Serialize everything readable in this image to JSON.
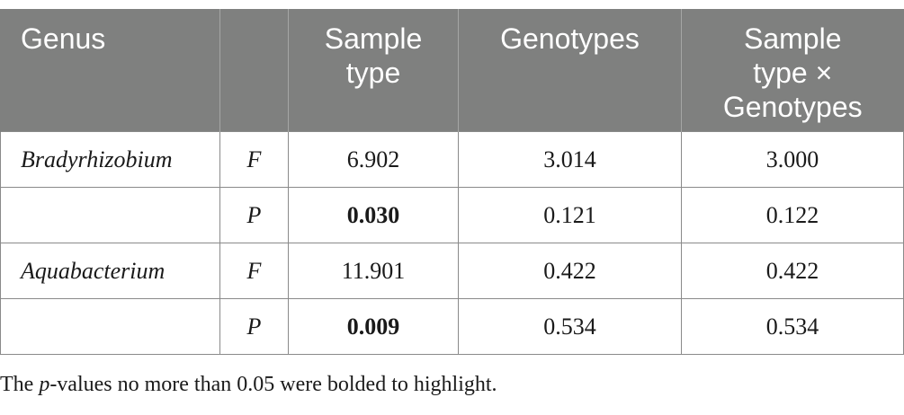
{
  "table": {
    "headers": {
      "genus": "Genus",
      "stat": "",
      "sample_type": [
        "Sample",
        "type"
      ],
      "genotypes": [
        "Genotypes"
      ],
      "interaction": [
        "Sample",
        "type ×",
        "Genotypes"
      ]
    },
    "rows": [
      {
        "genus": "Bradyrhizobium",
        "stat": "F",
        "sample_type": "6.902",
        "genotypes": "3.014",
        "interaction": "3.000"
      },
      {
        "genus": "",
        "stat": "P",
        "sample_type": "0.030",
        "genotypes": "0.121",
        "interaction": "0.122"
      },
      {
        "genus": "Aquabacterium",
        "stat": "F",
        "sample_type": "11.901",
        "genotypes": "0.422",
        "interaction": "0.422"
      },
      {
        "genus": "",
        "stat": "P",
        "sample_type": "0.009",
        "genotypes": "0.534",
        "interaction": "0.534"
      }
    ],
    "colors": {
      "header_bg": "#7f807f",
      "header_text": "#ffffff",
      "border": "#8a8a8a"
    }
  },
  "footnote": {
    "before": "The ",
    "italic": "p",
    "after": "-values no more than 0.05 were bolded to highlight."
  }
}
